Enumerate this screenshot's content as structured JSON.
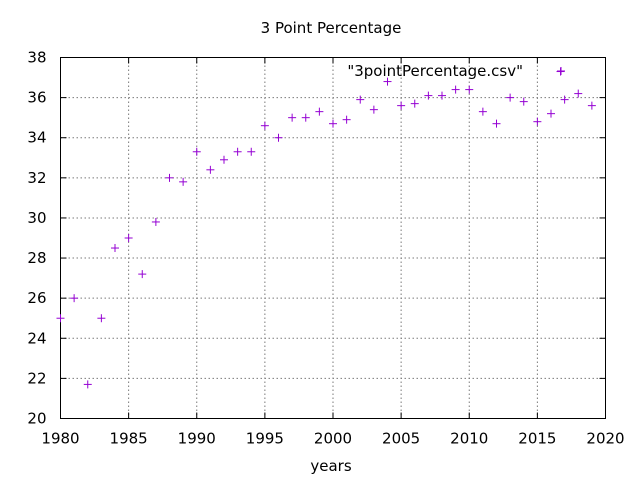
{
  "chart_data": {
    "type": "scatter",
    "title": "3 Point Percentage",
    "xlabel": "years",
    "ylabel": "",
    "xlim": [
      1980,
      2020
    ],
    "ylim": [
      20,
      38
    ],
    "xticks": [
      1980,
      1985,
      1990,
      1995,
      2000,
      2005,
      2010,
      2015,
      2020
    ],
    "yticks": [
      20,
      22,
      24,
      26,
      28,
      30,
      32,
      34,
      36,
      38
    ],
    "grid": true,
    "legend_position": "top-right",
    "marker_color": "#9400d3",
    "series": [
      {
        "name": "\"3pointPercentage.csv\"",
        "marker": "+",
        "x": [
          1980,
          1981,
          1982,
          1983,
          1984,
          1985,
          1986,
          1987,
          1988,
          1989,
          1990,
          1991,
          1992,
          1993,
          1994,
          1995,
          1996,
          1997,
          1998,
          1999,
          2000,
          2001,
          2002,
          2003,
          2004,
          2005,
          2006,
          2007,
          2008,
          2009,
          2010,
          2011,
          2012,
          2013,
          2014,
          2015,
          2016,
          2016.7,
          2017,
          2018,
          2019
        ],
        "y": [
          25.0,
          26.0,
          21.7,
          25.0,
          28.5,
          29.0,
          27.2,
          29.8,
          32.0,
          31.8,
          33.3,
          32.4,
          32.9,
          33.3,
          33.3,
          34.6,
          34.0,
          35.0,
          35.0,
          35.3,
          34.7,
          34.9,
          35.9,
          35.4,
          36.8,
          35.6,
          35.7,
          36.1,
          36.1,
          36.4,
          36.4,
          35.3,
          34.7,
          36.0,
          35.8,
          34.8,
          35.2,
          37.3,
          35.9,
          36.2,
          35.6
        ]
      }
    ]
  }
}
